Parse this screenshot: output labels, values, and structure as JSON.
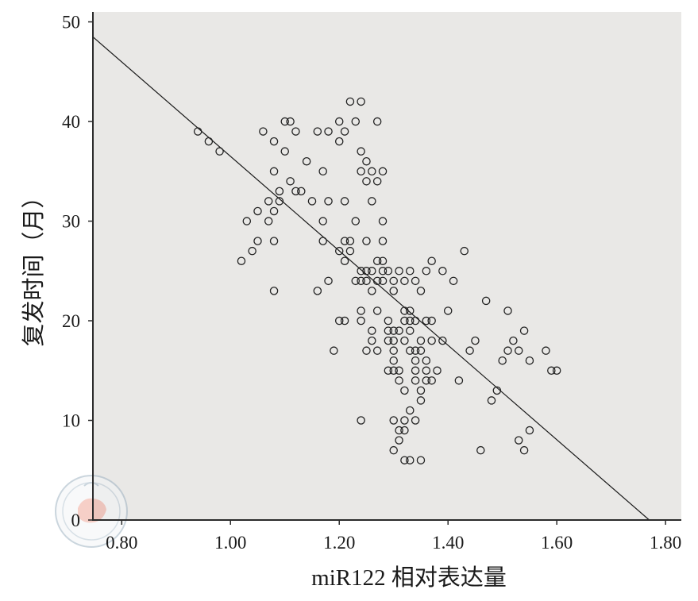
{
  "chart_data": {
    "type": "scatter",
    "xlabel": "miR122 相对表达量",
    "ylabel": "复发时间（月）",
    "xlim": [
      0.747,
      1.829
    ],
    "ylim": [
      0,
      51
    ],
    "x_ticks": [
      0.8,
      1.0,
      1.2,
      1.4,
      1.6,
      1.8
    ],
    "x_tick_labels": [
      "0.80",
      "1.00",
      "1.20",
      "1.40",
      "1.60",
      "1.80"
    ],
    "y_ticks": [
      0,
      10,
      20,
      30,
      40,
      50
    ],
    "y_tick_labels": [
      "0",
      "10",
      "20",
      "30",
      "40",
      "50"
    ],
    "grid": false,
    "marker": "open-circle",
    "fit_line": {
      "intercept": 83.9,
      "slope": -47.4
    },
    "colors": {
      "plot_background": "#e9e8e6",
      "marker": "#222222",
      "line": "#1a1a1a",
      "axis": "#2b2b2b"
    },
    "series": [
      {
        "x": [
          0.94,
          0.96,
          0.98,
          1.06,
          1.1,
          1.11,
          1.12,
          1.08,
          1.1,
          1.14,
          1.08,
          1.11,
          1.12,
          1.13,
          1.09,
          1.07,
          1.09,
          1.15,
          1.08,
          1.05,
          1.03,
          1.07,
          1.05,
          1.08,
          1.04,
          1.02,
          1.08,
          1.17,
          1.16,
          1.18,
          1.2,
          1.2,
          1.21,
          1.23,
          1.22,
          1.24,
          1.27,
          1.24,
          1.25,
          1.24,
          1.26,
          1.28,
          1.25,
          1.27,
          1.21,
          1.18,
          1.26,
          1.17,
          1.23,
          1.28,
          1.17,
          1.21,
          1.22,
          1.25,
          1.28,
          1.2,
          1.22,
          1.21,
          1.27,
          1.28,
          1.24,
          1.25,
          1.26,
          1.28,
          1.29,
          1.31,
          1.33,
          1.23,
          1.24,
          1.25,
          1.27,
          1.28,
          1.3,
          1.32,
          1.34,
          1.18,
          1.16,
          1.26,
          1.3,
          1.35,
          1.37,
          1.36,
          1.39,
          1.41,
          1.43,
          1.24,
          1.27,
          1.32,
          1.33,
          1.4,
          1.2,
          1.21,
          1.24,
          1.29,
          1.32,
          1.33,
          1.34,
          1.36,
          1.37,
          1.26,
          1.29,
          1.3,
          1.31,
          1.33,
          1.3,
          1.26,
          1.29,
          1.32,
          1.35,
          1.37,
          1.39,
          1.19,
          1.25,
          1.27,
          1.3,
          1.33,
          1.34,
          1.35,
          1.3,
          1.34,
          1.36,
          1.29,
          1.3,
          1.31,
          1.34,
          1.36,
          1.38,
          1.31,
          1.34,
          1.36,
          1.37,
          1.32,
          1.35,
          1.35,
          1.33,
          1.24,
          1.3,
          1.32,
          1.34,
          1.31,
          1.32,
          1.31,
          1.3,
          1.32,
          1.33,
          1.35,
          1.44,
          1.45,
          1.42,
          1.47,
          1.49,
          1.48,
          1.46,
          1.51,
          1.5,
          1.51,
          1.52,
          1.53,
          1.54,
          1.55,
          1.58,
          1.59,
          1.6,
          1.53,
          1.55,
          1.54
        ],
        "y": [
          39,
          38,
          37,
          39,
          40,
          40,
          39,
          38,
          37,
          36,
          35,
          34,
          33,
          33,
          33,
          32,
          32,
          32,
          31,
          31,
          30,
          30,
          28,
          28,
          27,
          26,
          23,
          35,
          39,
          39,
          40,
          38,
          39,
          40,
          42,
          42,
          40,
          37,
          36,
          35,
          35,
          35,
          34,
          34,
          32,
          32,
          32,
          30,
          30,
          30,
          28,
          28,
          28,
          28,
          28,
          27,
          27,
          26,
          26,
          26,
          25,
          25,
          25,
          25,
          25,
          25,
          25,
          24,
          24,
          24,
          24,
          24,
          24,
          24,
          24,
          24,
          23,
          23,
          23,
          23,
          26,
          25,
          25,
          24,
          27,
          21,
          21,
          21,
          21,
          21,
          20,
          20,
          20,
          20,
          20,
          20,
          20,
          20,
          20,
          19,
          19,
          19,
          19,
          19,
          18,
          18,
          18,
          18,
          18,
          18,
          18,
          17,
          17,
          17,
          17,
          17,
          17,
          17,
          16,
          16,
          16,
          15,
          15,
          15,
          15,
          15,
          15,
          14,
          14,
          14,
          14,
          13,
          13,
          12,
          11,
          10,
          10,
          10,
          10,
          9,
          9,
          8,
          7,
          6,
          6,
          6,
          17,
          18,
          14,
          22,
          13,
          12,
          7,
          21,
          16,
          17,
          18,
          17,
          19,
          16,
          17,
          15,
          15,
          8,
          9,
          7
        ]
      }
    ]
  }
}
